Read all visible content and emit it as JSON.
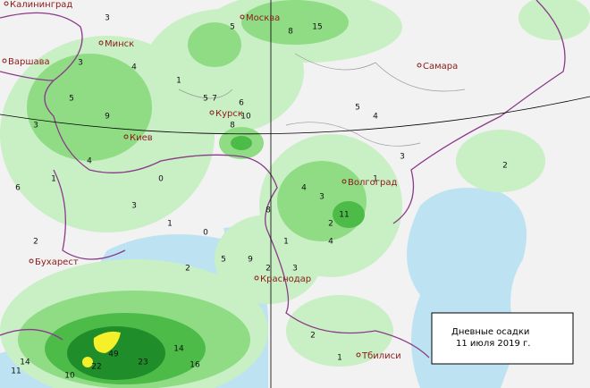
{
  "map": {
    "cities": [
      "Калининград",
      "Москва",
      "Минск",
      "Варшава",
      "Самара",
      "Курск",
      "Киев",
      "Волгоград",
      "Бухарест",
      "Краснодар",
      "Тбилиси"
    ],
    "stations": [
      3,
      5,
      8,
      15,
      3,
      4,
      1,
      5,
      8,
      6,
      3,
      5,
      9,
      10,
      4,
      2,
      11,
      1,
      3,
      2,
      7,
      4,
      1,
      6,
      2,
      3,
      1,
      2,
      5,
      8,
      9,
      3,
      4,
      49,
      23,
      14,
      16,
      22,
      10,
      11,
      14,
      0,
      0,
      1,
      2,
      4,
      3,
      5,
      2,
      1
    ],
    "legend": {
      "line1": "Дневные осадки",
      "line2": "11 июля 2019 г."
    }
  }
}
